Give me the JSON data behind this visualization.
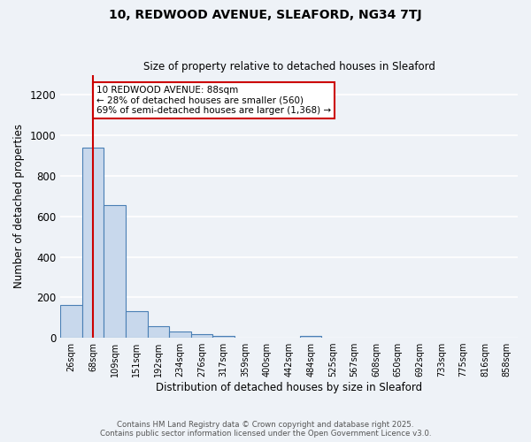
{
  "title": "10, REDWOOD AVENUE, SLEAFORD, NG34 7TJ",
  "subtitle": "Size of property relative to detached houses in Sleaford",
  "xlabel": "Distribution of detached houses by size in Sleaford",
  "ylabel": "Number of detached properties",
  "bar_color": "#c8d8ec",
  "bar_edge_color": "#4a7fb5",
  "background_color": "#eef2f7",
  "grid_color": "#ffffff",
  "categories": [
    "26sqm",
    "68sqm",
    "109sqm",
    "151sqm",
    "192sqm",
    "234sqm",
    "276sqm",
    "317sqm",
    "359sqm",
    "400sqm",
    "442sqm",
    "484sqm",
    "525sqm",
    "567sqm",
    "608sqm",
    "650sqm",
    "692sqm",
    "733sqm",
    "775sqm",
    "816sqm",
    "858sqm"
  ],
  "values": [
    160,
    940,
    655,
    130,
    57,
    30,
    20,
    10,
    0,
    0,
    0,
    10,
    0,
    0,
    0,
    0,
    0,
    0,
    0,
    0,
    0
  ],
  "ylim": [
    0,
    1300
  ],
  "yticks": [
    0,
    200,
    400,
    600,
    800,
    1000,
    1200
  ],
  "red_line_x": 1,
  "red_line_color": "#cc0000",
  "annotation_text": "10 REDWOOD AVENUE: 88sqm\n← 28% of detached houses are smaller (560)\n69% of semi-detached houses are larger (1,368) →",
  "annotation_box_color": "#ffffff",
  "annotation_box_edge": "#cc0000",
  "footnote1": "Contains HM Land Registry data © Crown copyright and database right 2025.",
  "footnote2": "Contains public sector information licensed under the Open Government Licence v3.0."
}
